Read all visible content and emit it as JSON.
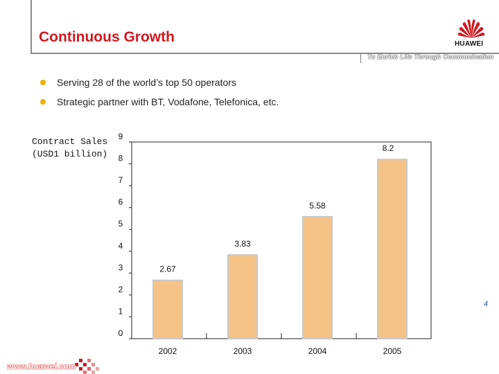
{
  "header": {
    "title": "Continuous Growth",
    "tagline": "To Enrich Life Through Communication",
    "brand": "HUAWEI"
  },
  "bullets": [
    "Serving 28 of the world’s top 50 operators",
    "Strategic partner with BT, Vodafone, Telefonica, etc."
  ],
  "side_label": {
    "line1": "Contract Sales",
    "line2": "(USD1 billion)"
  },
  "chart_data": {
    "type": "bar",
    "categories": [
      "2002",
      "2003",
      "2004",
      "2005"
    ],
    "values": [
      2.67,
      3.83,
      5.58,
      8.2
    ],
    "value_labels": [
      "2.67",
      "3.83",
      "5.58",
      "8.2"
    ],
    "title": "",
    "xlabel": "",
    "ylabel": "Contract Sales (USD1 billion)",
    "ylim": [
      0,
      9
    ],
    "yticks": [
      "0",
      "1",
      "2",
      "3",
      "4",
      "5",
      "6",
      "7",
      "8",
      "9"
    ],
    "bar_color": "#f5c387",
    "bar_edge_color": "#c8c8c8"
  },
  "footer": {
    "url": "www.huawei.com",
    "page_number": "4"
  },
  "colors": {
    "accent": "#d01820",
    "bullet": "#e8b400",
    "page_number": "#2c5aa0"
  }
}
